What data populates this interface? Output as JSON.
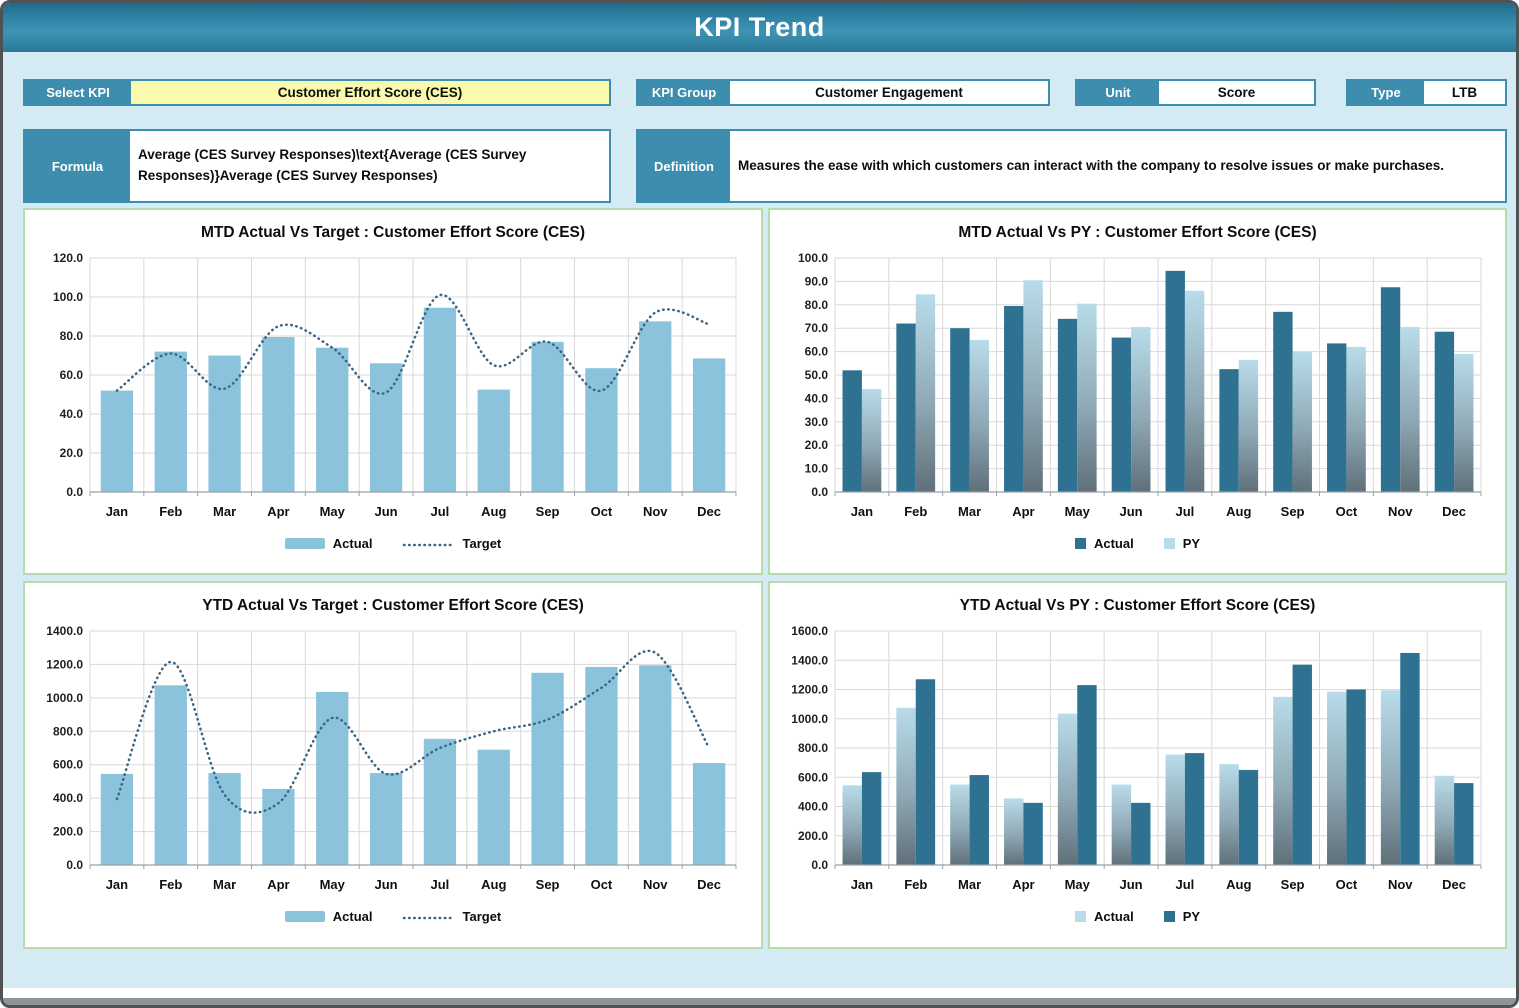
{
  "header": {
    "title": "KPI Trend"
  },
  "controls": {
    "select_kpi": {
      "label": "Select KPI",
      "value": "Customer Effort Score (CES)"
    },
    "kpi_group": {
      "label": "KPI Group",
      "value": "Customer Engagement"
    },
    "unit": {
      "label": "Unit",
      "value": "Score"
    },
    "type": {
      "label": "Type",
      "value": "LTB"
    }
  },
  "info": {
    "formula": {
      "label": "Formula",
      "value": "Average (CES Survey Responses)\\text{Average (CES Survey Responses)}Average (CES Survey Responses)"
    },
    "definition": {
      "label": "Definition",
      "value": "Measures the ease with which customers can interact with the company to resolve issues or make purchases."
    }
  },
  "colors": {
    "bar_light": "#8bc3dc",
    "bar_dark": "#2e7191",
    "gradient_top": "#b9dcea",
    "gradient_mid": "#8fa9b5",
    "gradient_bottom": "#5f707a",
    "target_line": "#3a6584",
    "grid": "#d9d9d9",
    "axis": "#9aa0a6",
    "panel_border": "#b7dbac",
    "teal": "#3d8dae",
    "yellow": "#fafaae",
    "page_bg": "#d5ebf3"
  },
  "chart_data": [
    {
      "id": "mtd-actual-vs-target",
      "type": "bar",
      "title": "MTD Actual Vs Target : Customer Effort Score (CES)",
      "categories": [
        "Jan",
        "Feb",
        "Mar",
        "Apr",
        "May",
        "Jun",
        "Jul",
        "Aug",
        "Sep",
        "Oct",
        "Nov",
        "Dec"
      ],
      "ylim": [
        0,
        120
      ],
      "ystep": 20,
      "grid": true,
      "legend_position": "bottom",
      "series": [
        {
          "name": "Actual",
          "kind": "bar",
          "style": "light",
          "values": [
            52,
            72,
            70,
            79.5,
            74,
            66,
            94.5,
            52.5,
            77,
            63.5,
            87.5,
            68.5
          ]
        },
        {
          "name": "Target",
          "kind": "dotted-line",
          "values": [
            52,
            71,
            53,
            85,
            74,
            51,
            101,
            65,
            77,
            52,
            92,
            86
          ]
        }
      ]
    },
    {
      "id": "mtd-actual-vs-py",
      "type": "bar",
      "title": "MTD Actual Vs PY : Customer Effort Score (CES)",
      "categories": [
        "Jan",
        "Feb",
        "Mar",
        "Apr",
        "May",
        "Jun",
        "Jul",
        "Aug",
        "Sep",
        "Oct",
        "Nov",
        "Dec"
      ],
      "ylim": [
        0,
        100
      ],
      "ystep": 10,
      "grid": true,
      "legend_position": "bottom",
      "series": [
        {
          "name": "Actual",
          "kind": "bar",
          "style": "dark",
          "values": [
            52,
            72,
            70,
            79.5,
            74,
            66,
            94.5,
            52.5,
            77,
            63.5,
            87.5,
            68.5
          ]
        },
        {
          "name": "PY",
          "kind": "bar",
          "style": "gradient",
          "values": [
            44,
            84.5,
            65,
            90.5,
            80.5,
            70.5,
            86,
            56.5,
            60,
            62,
            70.5,
            59
          ]
        }
      ]
    },
    {
      "id": "ytd-actual-vs-target",
      "type": "bar",
      "title": "YTD Actual Vs Target : Customer Effort Score (CES)",
      "categories": [
        "Jan",
        "Feb",
        "Mar",
        "Apr",
        "May",
        "Jun",
        "Jul",
        "Aug",
        "Sep",
        "Oct",
        "Nov",
        "Dec"
      ],
      "ylim": [
        0,
        1400
      ],
      "ystep": 200,
      "grid": true,
      "legend_position": "bottom",
      "series": [
        {
          "name": "Actual",
          "kind": "bar",
          "style": "light",
          "values": [
            545,
            1075,
            550,
            455,
            1035,
            550,
            755,
            690,
            1150,
            1185,
            1195,
            610
          ]
        },
        {
          "name": "Target",
          "kind": "dotted-line",
          "values": [
            395,
            1215,
            420,
            370,
            880,
            545,
            700,
            800,
            870,
            1060,
            1270,
            700
          ]
        }
      ]
    },
    {
      "id": "ytd-actual-vs-py",
      "type": "bar",
      "title": "YTD Actual Vs PY : Customer Effort Score (CES)",
      "categories": [
        "Jan",
        "Feb",
        "Mar",
        "Apr",
        "May",
        "Jun",
        "Jul",
        "Aug",
        "Sep",
        "Oct",
        "Nov",
        "Dec"
      ],
      "ylim": [
        0,
        1600
      ],
      "ystep": 200,
      "grid": true,
      "legend_position": "bottom",
      "series": [
        {
          "name": "Actual",
          "kind": "bar",
          "style": "gradient",
          "values": [
            545,
            1075,
            550,
            455,
            1035,
            550,
            755,
            690,
            1150,
            1185,
            1195,
            610
          ]
        },
        {
          "name": "PY",
          "kind": "bar",
          "style": "dark",
          "values": [
            635,
            1270,
            615,
            425,
            1230,
            425,
            765,
            650,
            1370,
            1200,
            1450,
            560
          ]
        }
      ]
    }
  ]
}
